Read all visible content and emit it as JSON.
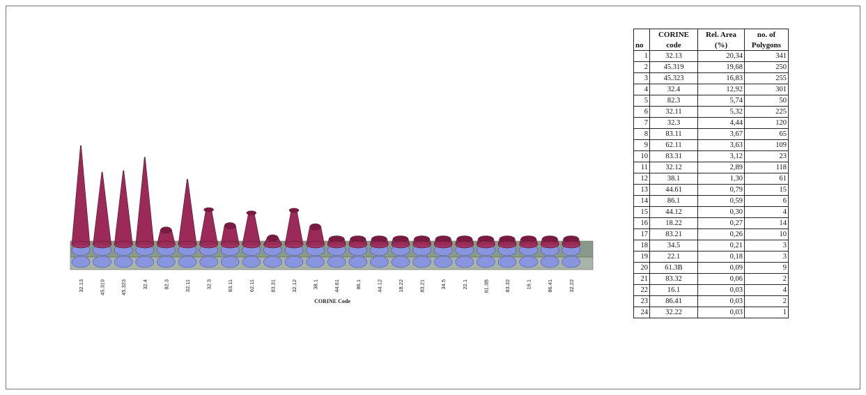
{
  "chart_data": {
    "type": "bar",
    "xlabel": "CORINE Code",
    "categories": [
      "32.13",
      "45.319",
      "45.323",
      "32.4",
      "82.3",
      "32.11",
      "32.3",
      "83.11",
      "62.11",
      "83.31",
      "32.12",
      "38.1",
      "44.61",
      "86.1",
      "44.12",
      "18.22",
      "83.21",
      "34.5",
      "22.1",
      "61.3B",
      "83.32",
      "16.1",
      "86.41",
      "32.22"
    ],
    "series": [
      {
        "values": [
          341,
          250,
          255,
          301,
          50,
          225,
          120,
          65,
          109,
          23,
          118,
          61,
          15,
          6,
          4,
          14,
          10,
          3,
          3,
          9,
          2,
          4,
          2,
          1
        ]
      }
    ],
    "colors": {
      "cone": "#9c2a58",
      "cap": "#7a1b42",
      "base": "#8a95e0",
      "floor": "#8a9a8a"
    }
  },
  "table": {
    "header_row1": [
      "",
      "CORINE",
      "Rel. Area",
      "no. of"
    ],
    "header_row2": [
      "no",
      "code",
      "(%)",
      "Polygons"
    ],
    "rows": [
      [
        "1",
        "32.13",
        "20,34",
        "341"
      ],
      [
        "2",
        "45.319",
        "19,68",
        "250"
      ],
      [
        "3",
        "45.323",
        "16,83",
        "255"
      ],
      [
        "4",
        "32.4",
        "12,92",
        "301"
      ],
      [
        "5",
        "82.3",
        "5,74",
        "50"
      ],
      [
        "6",
        "32.11",
        "5,32",
        "225"
      ],
      [
        "7",
        "32.3",
        "4,44",
        "120"
      ],
      [
        "8",
        "83.11",
        "3,67",
        "65"
      ],
      [
        "9",
        "62.11",
        "3,63",
        "109"
      ],
      [
        "10",
        "83.31",
        "3,12",
        "23"
      ],
      [
        "11",
        "32.12",
        "2,89",
        "118"
      ],
      [
        "12",
        "38.1",
        "1,30",
        "61"
      ],
      [
        "13",
        "44.61",
        "0,79",
        "15"
      ],
      [
        "14",
        "86.1",
        "0,59",
        "6"
      ],
      [
        "15",
        "44.12",
        "0,30",
        "4"
      ],
      [
        "16",
        "18.22",
        "0,27",
        "14"
      ],
      [
        "17",
        "83.21",
        "0,26",
        "10"
      ],
      [
        "18",
        "34.5",
        "0,21",
        "3"
      ],
      [
        "19",
        "22.1",
        "0,18",
        "3"
      ],
      [
        "20",
        "61.3B",
        "0,09",
        "9"
      ],
      [
        "21",
        "83.32",
        "0,06",
        "2"
      ],
      [
        "22",
        "16.1",
        "0,03",
        "4"
      ],
      [
        "23",
        "86.41",
        "0,03",
        "2"
      ],
      [
        "24",
        "32.22",
        "0,03",
        "1"
      ]
    ]
  }
}
